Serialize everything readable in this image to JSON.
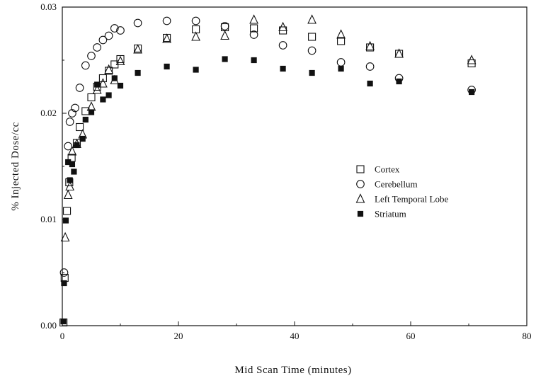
{
  "chart_data": {
    "type": "scatter",
    "xlabel": "Mid Scan Time (minutes)",
    "ylabel": "% Injected Dose/cc",
    "xlim": [
      0,
      80
    ],
    "ylim": [
      0,
      0.03
    ],
    "xticks": [
      "0",
      "20",
      "40",
      "60",
      "80"
    ],
    "yticks": [
      "0.00",
      "0.01",
      "0.02",
      "0.03"
    ],
    "legend_position": "right",
    "series": [
      {
        "name": "Cortex",
        "marker": "square-open",
        "points": [
          [
            0.2,
            0.0003
          ],
          [
            0.4,
            0.0045
          ],
          [
            0.8,
            0.0108
          ],
          [
            1.2,
            0.0135
          ],
          [
            1.6,
            0.0158
          ],
          [
            2.5,
            0.0172
          ],
          [
            3,
            0.0187
          ],
          [
            4,
            0.0202
          ],
          [
            5,
            0.0215
          ],
          [
            6,
            0.0225
          ],
          [
            7,
            0.0233
          ],
          [
            8,
            0.024
          ],
          [
            9,
            0.0246
          ],
          [
            10,
            0.0251
          ],
          [
            13,
            0.0261
          ],
          [
            18,
            0.0271
          ],
          [
            23,
            0.0279
          ],
          [
            28,
            0.0281
          ],
          [
            33,
            0.028
          ],
          [
            38,
            0.0278
          ],
          [
            43,
            0.0272
          ],
          [
            48,
            0.0268
          ],
          [
            53,
            0.0262
          ],
          [
            58,
            0.0256
          ],
          [
            70.5,
            0.0247
          ]
        ]
      },
      {
        "name": "Cerebellum",
        "marker": "circle-open",
        "points": [
          [
            0.3,
            0.005
          ],
          [
            1,
            0.0169
          ],
          [
            1.3,
            0.0192
          ],
          [
            1.7,
            0.02
          ],
          [
            2.2,
            0.0205
          ],
          [
            3,
            0.0224
          ],
          [
            4,
            0.0245
          ],
          [
            5,
            0.0254
          ],
          [
            6,
            0.0262
          ],
          [
            7,
            0.0269
          ],
          [
            8,
            0.0273
          ],
          [
            9,
            0.028
          ],
          [
            10,
            0.0278
          ],
          [
            13,
            0.0285
          ],
          [
            18,
            0.0287
          ],
          [
            23,
            0.0287
          ],
          [
            28,
            0.0282
          ],
          [
            33,
            0.0274
          ],
          [
            38,
            0.0264
          ],
          [
            43,
            0.0259
          ],
          [
            48,
            0.0248
          ],
          [
            53,
            0.0244
          ],
          [
            58,
            0.0233
          ],
          [
            70.5,
            0.0222
          ]
        ]
      },
      {
        "name": "Left Temporal Lobe",
        "marker": "triangle-open",
        "points": [
          [
            0.5,
            0.0083
          ],
          [
            1,
            0.0123
          ],
          [
            1.3,
            0.0131
          ],
          [
            1.7,
            0.0164
          ],
          [
            2.5,
            0.0171
          ],
          [
            3.5,
            0.018
          ],
          [
            5,
            0.0206
          ],
          [
            6,
            0.0222
          ],
          [
            7,
            0.0228
          ],
          [
            8,
            0.0241
          ],
          [
            9,
            0.0231
          ],
          [
            10,
            0.0249
          ],
          [
            13,
            0.026
          ],
          [
            18,
            0.027
          ],
          [
            23,
            0.0272
          ],
          [
            28,
            0.0273
          ],
          [
            33,
            0.0288
          ],
          [
            38,
            0.0281
          ],
          [
            43,
            0.0288
          ],
          [
            48,
            0.0274
          ],
          [
            53,
            0.0263
          ],
          [
            58,
            0.0256
          ],
          [
            70.5,
            0.025
          ]
        ]
      },
      {
        "name": "Striatum",
        "marker": "square-filled",
        "points": [
          [
            0.2,
            0.0004
          ],
          [
            0.3,
            0.004
          ],
          [
            0.6,
            0.0099
          ],
          [
            1,
            0.0154
          ],
          [
            1.3,
            0.0137
          ],
          [
            1.7,
            0.0152
          ],
          [
            2,
            0.0145
          ],
          [
            2.5,
            0.017
          ],
          [
            3.5,
            0.0176
          ],
          [
            4,
            0.0194
          ],
          [
            5,
            0.0201
          ],
          [
            6,
            0.0227
          ],
          [
            7,
            0.0213
          ],
          [
            8,
            0.0217
          ],
          [
            9,
            0.0233
          ],
          [
            10,
            0.0226
          ],
          [
            13,
            0.0238
          ],
          [
            18,
            0.0244
          ],
          [
            23,
            0.0241
          ],
          [
            28,
            0.0251
          ],
          [
            33,
            0.025
          ],
          [
            38,
            0.0242
          ],
          [
            43,
            0.0238
          ],
          [
            48,
            0.0242
          ],
          [
            53,
            0.0228
          ],
          [
            58,
            0.023
          ],
          [
            70.5,
            0.022
          ]
        ]
      }
    ]
  }
}
